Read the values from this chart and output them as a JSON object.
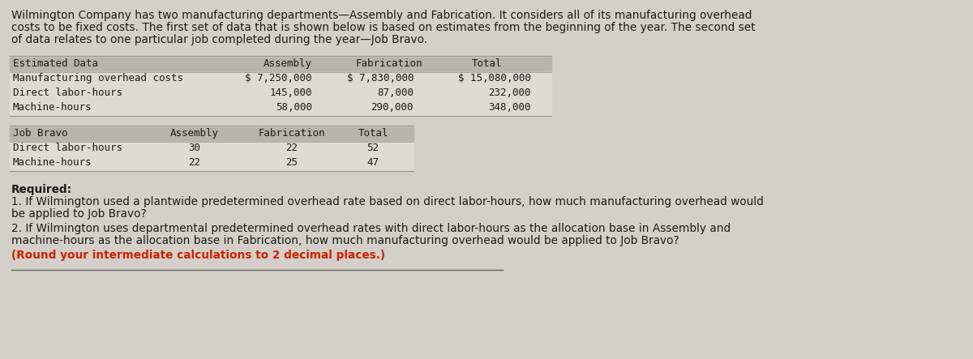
{
  "intro_lines": [
    "Wilmington Company has two manufacturing departments—Assembly and Fabrication. It considers all of its manufacturing overhead",
    "costs to be fixed costs. The first set of data that is shown below is based on estimates from the beginning of the year. The second set",
    "of data relates to one particular job completed during the year—Job Bravo."
  ],
  "table1_header": [
    "Estimated Data",
    "Assembly",
    "Fabrication",
    "Total"
  ],
  "table1_rows": [
    [
      "Manufacturing overhead costs",
      "$ 7,250,000",
      "$ 7,830,000",
      "$ 15,080,000"
    ],
    [
      "Direct labor-hours",
      "145,000",
      "87,000",
      "232,000"
    ],
    [
      "Machine-hours",
      "58,000",
      "290,000",
      "348,000"
    ]
  ],
  "table2_header": [
    "Job Bravo",
    "Assembly",
    "Fabrication",
    "Total"
  ],
  "table2_rows": [
    [
      "Direct labor-hours",
      "30",
      "22",
      "52"
    ],
    [
      "Machine-hours",
      "22",
      "25",
      "47"
    ]
  ],
  "required_label": "Required:",
  "q1_lines": [
    "1. If Wilmington used a plantwide predetermined overhead rate based on direct labor-hours, how much manufacturing overhead would",
    "be applied to Job Bravo?"
  ],
  "q2_lines": [
    "2. If Wilmington uses departmental predetermined overhead rates with direct labor-hours as the allocation base in Assembly and",
    "machine-hours as the allocation base in Fabrication, how much manufacturing overhead would be applied to Job Bravo?"
  ],
  "q2_note": "(Round your intermediate calculations to 2 decimal places.)",
  "bg_color": "#d4cfc8",
  "table_bg_light": "#dedad4",
  "table_bg_header": "#b8b3ac",
  "text_color": "#1c1c1c",
  "red_color": "#cc2200",
  "border_color": "#999490",
  "bottom_line_color": "#666660"
}
